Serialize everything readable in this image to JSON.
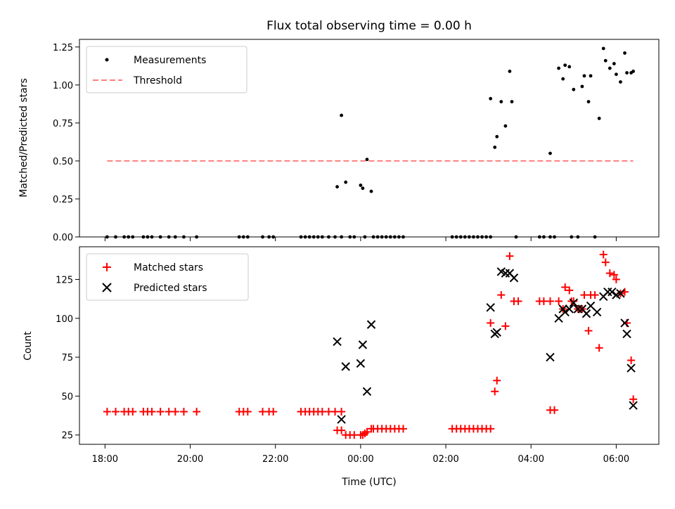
{
  "chart_data": {
    "title": "Flux total observing time = 0.00 h",
    "xlabel": "Time (UTC)",
    "x_ticks": [
      {
        "h": 18,
        "label": "18:00"
      },
      {
        "h": 20,
        "label": "20:00"
      },
      {
        "h": 22,
        "label": "22:00"
      },
      {
        "h": 24,
        "label": "00:00"
      },
      {
        "h": 26,
        "label": "02:00"
      },
      {
        "h": 28,
        "label": "04:00"
      },
      {
        "h": 30,
        "label": "06:00"
      }
    ],
    "xlim": [
      17.4,
      31.0
    ],
    "colors": {
      "measurements": "#000000",
      "threshold": "#ff7f7f",
      "matched": "#ff0000",
      "predicted": "#000000"
    },
    "top": {
      "type": "scatter",
      "ylabel": "Matched/Predicted stars",
      "ylim": [
        0,
        1.3
      ],
      "y_ticks": [
        0.0,
        0.25,
        0.5,
        0.75,
        1.0,
        1.25
      ],
      "y_tick_labels": [
        "0.00",
        "0.25",
        "0.50",
        "0.75",
        "1.00",
        "1.25"
      ],
      "legend": [
        "Measurements",
        "Threshold"
      ],
      "threshold": {
        "value": 0.5,
        "x_start": 18.05,
        "x_end": 30.4
      },
      "measurements": [
        [
          18.05,
          0
        ],
        [
          18.25,
          0
        ],
        [
          18.45,
          0
        ],
        [
          18.55,
          0
        ],
        [
          18.65,
          0
        ],
        [
          18.9,
          0
        ],
        [
          19.0,
          0
        ],
        [
          19.1,
          0
        ],
        [
          19.3,
          0
        ],
        [
          19.5,
          0
        ],
        [
          19.65,
          0
        ],
        [
          19.85,
          0
        ],
        [
          20.15,
          0
        ],
        [
          21.15,
          0
        ],
        [
          21.25,
          0
        ],
        [
          21.35,
          0
        ],
        [
          21.7,
          0
        ],
        [
          21.85,
          0
        ],
        [
          21.95,
          0
        ],
        [
          22.6,
          0
        ],
        [
          22.7,
          0
        ],
        [
          22.8,
          0
        ],
        [
          22.9,
          0
        ],
        [
          23.0,
          0
        ],
        [
          23.1,
          0
        ],
        [
          23.25,
          0
        ],
        [
          23.4,
          0
        ],
        [
          23.55,
          0
        ],
        [
          23.45,
          0.33
        ],
        [
          23.55,
          0.8
        ],
        [
          23.65,
          0.36
        ],
        [
          23.75,
          0
        ],
        [
          23.85,
          0
        ],
        [
          24.0,
          0.34
        ],
        [
          24.05,
          0.32
        ],
        [
          24.1,
          0
        ],
        [
          24.15,
          0.51
        ],
        [
          24.25,
          0.3
        ],
        [
          24.3,
          0
        ],
        [
          24.4,
          0
        ],
        [
          24.5,
          0
        ],
        [
          24.6,
          0
        ],
        [
          24.7,
          0
        ],
        [
          24.8,
          0
        ],
        [
          24.9,
          0
        ],
        [
          25.0,
          0
        ],
        [
          26.15,
          0
        ],
        [
          26.25,
          0
        ],
        [
          26.35,
          0
        ],
        [
          26.45,
          0
        ],
        [
          26.55,
          0
        ],
        [
          26.65,
          0
        ],
        [
          26.75,
          0
        ],
        [
          26.85,
          0
        ],
        [
          26.95,
          0
        ],
        [
          27.05,
          0
        ],
        [
          27.05,
          0.91
        ],
        [
          27.15,
          0.59
        ],
        [
          27.2,
          0.66
        ],
        [
          27.3,
          0.89
        ],
        [
          27.4,
          0.73
        ],
        [
          27.5,
          1.09
        ],
        [
          27.55,
          0.89
        ],
        [
          27.65,
          0
        ],
        [
          28.2,
          0
        ],
        [
          28.3,
          0
        ],
        [
          28.45,
          0
        ],
        [
          28.45,
          0.55
        ],
        [
          28.55,
          0
        ],
        [
          28.65,
          1.11
        ],
        [
          28.75,
          1.04
        ],
        [
          28.8,
          1.13
        ],
        [
          28.9,
          1.12
        ],
        [
          28.95,
          0
        ],
        [
          29.0,
          0.97
        ],
        [
          29.1,
          0
        ],
        [
          29.2,
          0.99
        ],
        [
          29.25,
          1.06
        ],
        [
          29.35,
          0.89
        ],
        [
          29.4,
          1.06
        ],
        [
          29.5,
          0
        ],
        [
          29.6,
          0.78
        ],
        [
          29.7,
          1.24
        ],
        [
          29.75,
          1.16
        ],
        [
          29.85,
          1.11
        ],
        [
          29.95,
          1.14
        ],
        [
          30.0,
          1.07
        ],
        [
          30.1,
          1.02
        ],
        [
          30.2,
          1.21
        ],
        [
          30.25,
          1.08
        ],
        [
          30.35,
          1.08
        ],
        [
          30.4,
          1.09
        ]
      ]
    },
    "bottom": {
      "type": "scatter",
      "ylabel": "Count",
      "ylim": [
        19,
        146
      ],
      "y_ticks": [
        25,
        50,
        75,
        100,
        125
      ],
      "y_tick_labels": [
        "25",
        "50",
        "75",
        "100",
        "125"
      ],
      "legend": [
        "Matched stars",
        "Predicted stars"
      ],
      "matched": [
        [
          18.05,
          40
        ],
        [
          18.25,
          40
        ],
        [
          18.45,
          40
        ],
        [
          18.55,
          40
        ],
        [
          18.65,
          40
        ],
        [
          18.9,
          40
        ],
        [
          19.0,
          40
        ],
        [
          19.1,
          40
        ],
        [
          19.3,
          40
        ],
        [
          19.5,
          40
        ],
        [
          19.65,
          40
        ],
        [
          19.85,
          40
        ],
        [
          20.15,
          40
        ],
        [
          21.15,
          40
        ],
        [
          21.25,
          40
        ],
        [
          21.35,
          40
        ],
        [
          21.7,
          40
        ],
        [
          21.85,
          40
        ],
        [
          21.95,
          40
        ],
        [
          22.6,
          40
        ],
        [
          22.7,
          40
        ],
        [
          22.8,
          40
        ],
        [
          22.9,
          40
        ],
        [
          23.0,
          40
        ],
        [
          23.1,
          40
        ],
        [
          23.25,
          40
        ],
        [
          23.4,
          40
        ],
        [
          23.55,
          40
        ],
        [
          23.45,
          28
        ],
        [
          23.55,
          28
        ],
        [
          23.65,
          25
        ],
        [
          23.75,
          25
        ],
        [
          23.85,
          25
        ],
        [
          24.0,
          25
        ],
        [
          24.05,
          25
        ],
        [
          24.1,
          26
        ],
        [
          24.15,
          27
        ],
        [
          24.25,
          29
        ],
        [
          24.3,
          29
        ],
        [
          24.4,
          29
        ],
        [
          24.5,
          29
        ],
        [
          24.6,
          29
        ],
        [
          24.7,
          29
        ],
        [
          24.8,
          29
        ],
        [
          24.9,
          29
        ],
        [
          25.0,
          29
        ],
        [
          26.15,
          29
        ],
        [
          26.25,
          29
        ],
        [
          26.35,
          29
        ],
        [
          26.45,
          29
        ],
        [
          26.55,
          29
        ],
        [
          26.65,
          29
        ],
        [
          26.75,
          29
        ],
        [
          26.85,
          29
        ],
        [
          26.95,
          29
        ],
        [
          27.05,
          29
        ],
        [
          27.05,
          97
        ],
        [
          27.15,
          53
        ],
        [
          27.2,
          60
        ],
        [
          27.3,
          115
        ],
        [
          27.4,
          95
        ],
        [
          27.5,
          140
        ],
        [
          27.6,
          111
        ],
        [
          27.7,
          111
        ],
        [
          28.2,
          111
        ],
        [
          28.3,
          111
        ],
        [
          28.45,
          111
        ],
        [
          28.45,
          41
        ],
        [
          28.55,
          41
        ],
        [
          28.65,
          111
        ],
        [
          28.75,
          106
        ],
        [
          28.8,
          120
        ],
        [
          28.9,
          118
        ],
        [
          28.95,
          111
        ],
        [
          29.0,
          111
        ],
        [
          29.1,
          106
        ],
        [
          29.2,
          106
        ],
        [
          29.25,
          115
        ],
        [
          29.35,
          92
        ],
        [
          29.4,
          115
        ],
        [
          29.5,
          115
        ],
        [
          29.6,
          81
        ],
        [
          29.7,
          141
        ],
        [
          29.75,
          136
        ],
        [
          29.85,
          129
        ],
        [
          29.95,
          128
        ],
        [
          30.0,
          125
        ],
        [
          30.1,
          116
        ],
        [
          30.2,
          117
        ],
        [
          30.25,
          97
        ],
        [
          30.35,
          73
        ],
        [
          30.4,
          48
        ]
      ],
      "predicted": [
        [
          23.45,
          85
        ],
        [
          23.55,
          35
        ],
        [
          23.65,
          69
        ],
        [
          24.0,
          71
        ],
        [
          24.05,
          83
        ],
        [
          24.15,
          53
        ],
        [
          24.25,
          96
        ],
        [
          27.05,
          107
        ],
        [
          27.15,
          90
        ],
        [
          27.2,
          91
        ],
        [
          27.3,
          130
        ],
        [
          27.4,
          129
        ],
        [
          27.5,
          129
        ],
        [
          27.6,
          126
        ],
        [
          28.45,
          75
        ],
        [
          28.65,
          100
        ],
        [
          28.75,
          106
        ],
        [
          28.8,
          104
        ],
        [
          28.9,
          106
        ],
        [
          29.0,
          110
        ],
        [
          29.1,
          106
        ],
        [
          29.2,
          106
        ],
        [
          29.3,
          103
        ],
        [
          29.4,
          108
        ],
        [
          29.55,
          104
        ],
        [
          29.7,
          114
        ],
        [
          29.8,
          117
        ],
        [
          29.9,
          117
        ],
        [
          30.0,
          115
        ],
        [
          30.1,
          116
        ],
        [
          30.2,
          97
        ],
        [
          30.25,
          90
        ],
        [
          30.35,
          68
        ],
        [
          30.4,
          44
        ]
      ]
    }
  }
}
